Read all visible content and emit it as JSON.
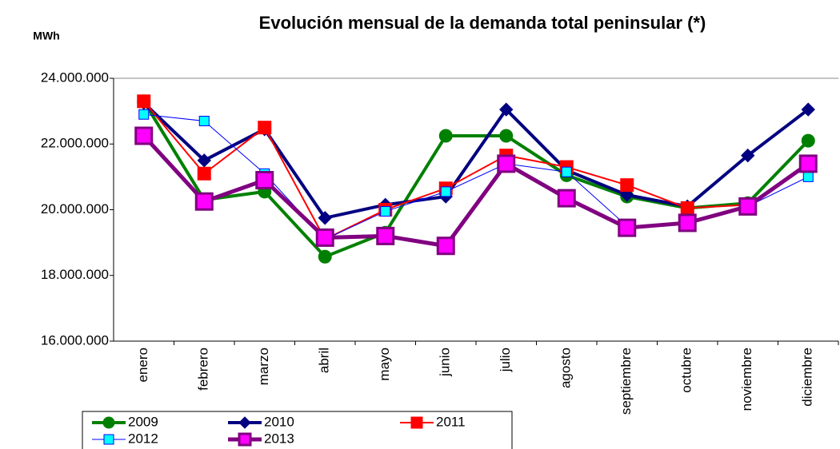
{
  "chart_data": {
    "type": "line",
    "title": "Evolución mensual de la demanda total peninsular (*)",
    "y_label": "MWh",
    "categories": [
      "enero",
      "febrero",
      "marzo",
      "abril",
      "mayo",
      "junio",
      "julio",
      "agosto",
      "septiembre",
      "octubre",
      "noviembre",
      "diciembre"
    ],
    "series": [
      {
        "name": "2009",
        "color": "#008000",
        "marker": "circle",
        "marker_color": "#008000",
        "values": [
          23300000,
          20300000,
          20550000,
          18570000,
          19300000,
          22250000,
          22250000,
          21050000,
          20400000,
          20050000,
          20200000,
          22100000
        ]
      },
      {
        "name": "2010",
        "color": "#000080",
        "marker": "diamond",
        "marker_color": "#000080",
        "values": [
          23250000,
          21500000,
          22450000,
          19750000,
          20150000,
          20400000,
          23050000,
          21200000,
          20450000,
          20100000,
          21650000,
          23050000
        ]
      },
      {
        "name": "2011",
        "color": "#ff0000",
        "marker": "square",
        "marker_color": "#ff0000",
        "values": [
          23300000,
          21100000,
          22500000,
          19100000,
          20000000,
          20650000,
          21650000,
          21300000,
          20750000,
          20050000,
          20150000,
          21350000
        ]
      },
      {
        "name": "2012",
        "color": "#0000ff",
        "marker": "square",
        "marker_color": "#00ffff",
        "values": [
          22900000,
          22700000,
          21100000,
          19100000,
          19950000,
          20550000,
          21400000,
          21150000,
          19500000,
          19600000,
          20100000,
          21000000
        ]
      },
      {
        "name": "2013",
        "color": "#800080",
        "marker": "square",
        "marker_color": "#ff00ff",
        "values": [
          22250000,
          20250000,
          20900000,
          19150000,
          19200000,
          18900000,
          21400000,
          20350000,
          19450000,
          19600000,
          20100000,
          21400000
        ]
      }
    ],
    "ylim": [
      16000000,
      24000000
    ],
    "yticks": [
      {
        "value": 16000000,
        "label": "16.000.000"
      },
      {
        "value": 18000000,
        "label": "18.000.000"
      },
      {
        "value": 20000000,
        "label": "20.000.000"
      },
      {
        "value": 22000000,
        "label": "22.000.000"
      },
      {
        "value": 24000000,
        "label": "24.000.000"
      }
    ],
    "grid": false
  }
}
